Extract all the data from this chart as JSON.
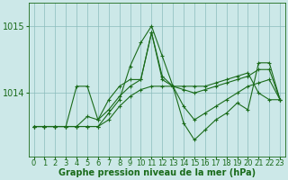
{
  "xlabel": "Graphe pression niveau de la mer (hPa)",
  "x": [
    0,
    1,
    2,
    3,
    4,
    5,
    6,
    7,
    8,
    9,
    10,
    11,
    12,
    13,
    14,
    15,
    16,
    17,
    18,
    19,
    20,
    21,
    22,
    23
  ],
  "line1": [
    1013.5,
    1013.5,
    1013.5,
    1013.5,
    1014.1,
    1014.1,
    1013.6,
    1013.9,
    1014.1,
    1014.2,
    1014.2,
    1014.9,
    1014.2,
    1014.1,
    1014.05,
    1014.0,
    1014.05,
    1014.1,
    1014.15,
    1014.2,
    1014.25,
    1014.35,
    1014.35,
    1013.9
  ],
  "line2": [
    1013.5,
    1013.5,
    1013.5,
    1013.5,
    1013.5,
    1013.5,
    1013.5,
    1013.7,
    1013.9,
    1014.4,
    1014.75,
    1015.0,
    1014.55,
    1014.1,
    1013.55,
    1013.3,
    1013.45,
    1013.6,
    1013.7,
    1013.85,
    1013.75,
    1014.45,
    1014.45,
    1013.9
  ],
  "line3": [
    1013.5,
    1013.5,
    1013.5,
    1013.5,
    1013.5,
    1013.65,
    1013.6,
    1013.75,
    1013.95,
    1014.1,
    1014.2,
    1014.9,
    1014.25,
    1014.1,
    1013.8,
    1013.6,
    1013.7,
    1013.8,
    1013.9,
    1014.0,
    1014.1,
    1014.15,
    1014.2,
    1013.9
  ],
  "line4": [
    1013.5,
    1013.5,
    1013.5,
    1013.5,
    1013.5,
    1013.5,
    1013.5,
    1013.6,
    1013.8,
    1013.95,
    1014.05,
    1014.1,
    1014.1,
    1014.1,
    1014.1,
    1014.1,
    1014.1,
    1014.15,
    1014.2,
    1014.25,
    1014.3,
    1014.0,
    1013.9,
    1013.9
  ],
  "bg_color": "#cce8e8",
  "line_color": "#1a6b1a",
  "grid_color": "#8bbcbc",
  "ylim_min": 1013.05,
  "ylim_max": 1015.35,
  "ytick_positions": [
    1014.0,
    1015.0
  ],
  "ytick_labels": [
    "1014",
    "1015"
  ],
  "marker": "+",
  "markersize": 3,
  "linewidth": 0.8,
  "fontsize_xlabel": 7,
  "fontsize_ytick": 7,
  "fontsize_xtick": 6
}
